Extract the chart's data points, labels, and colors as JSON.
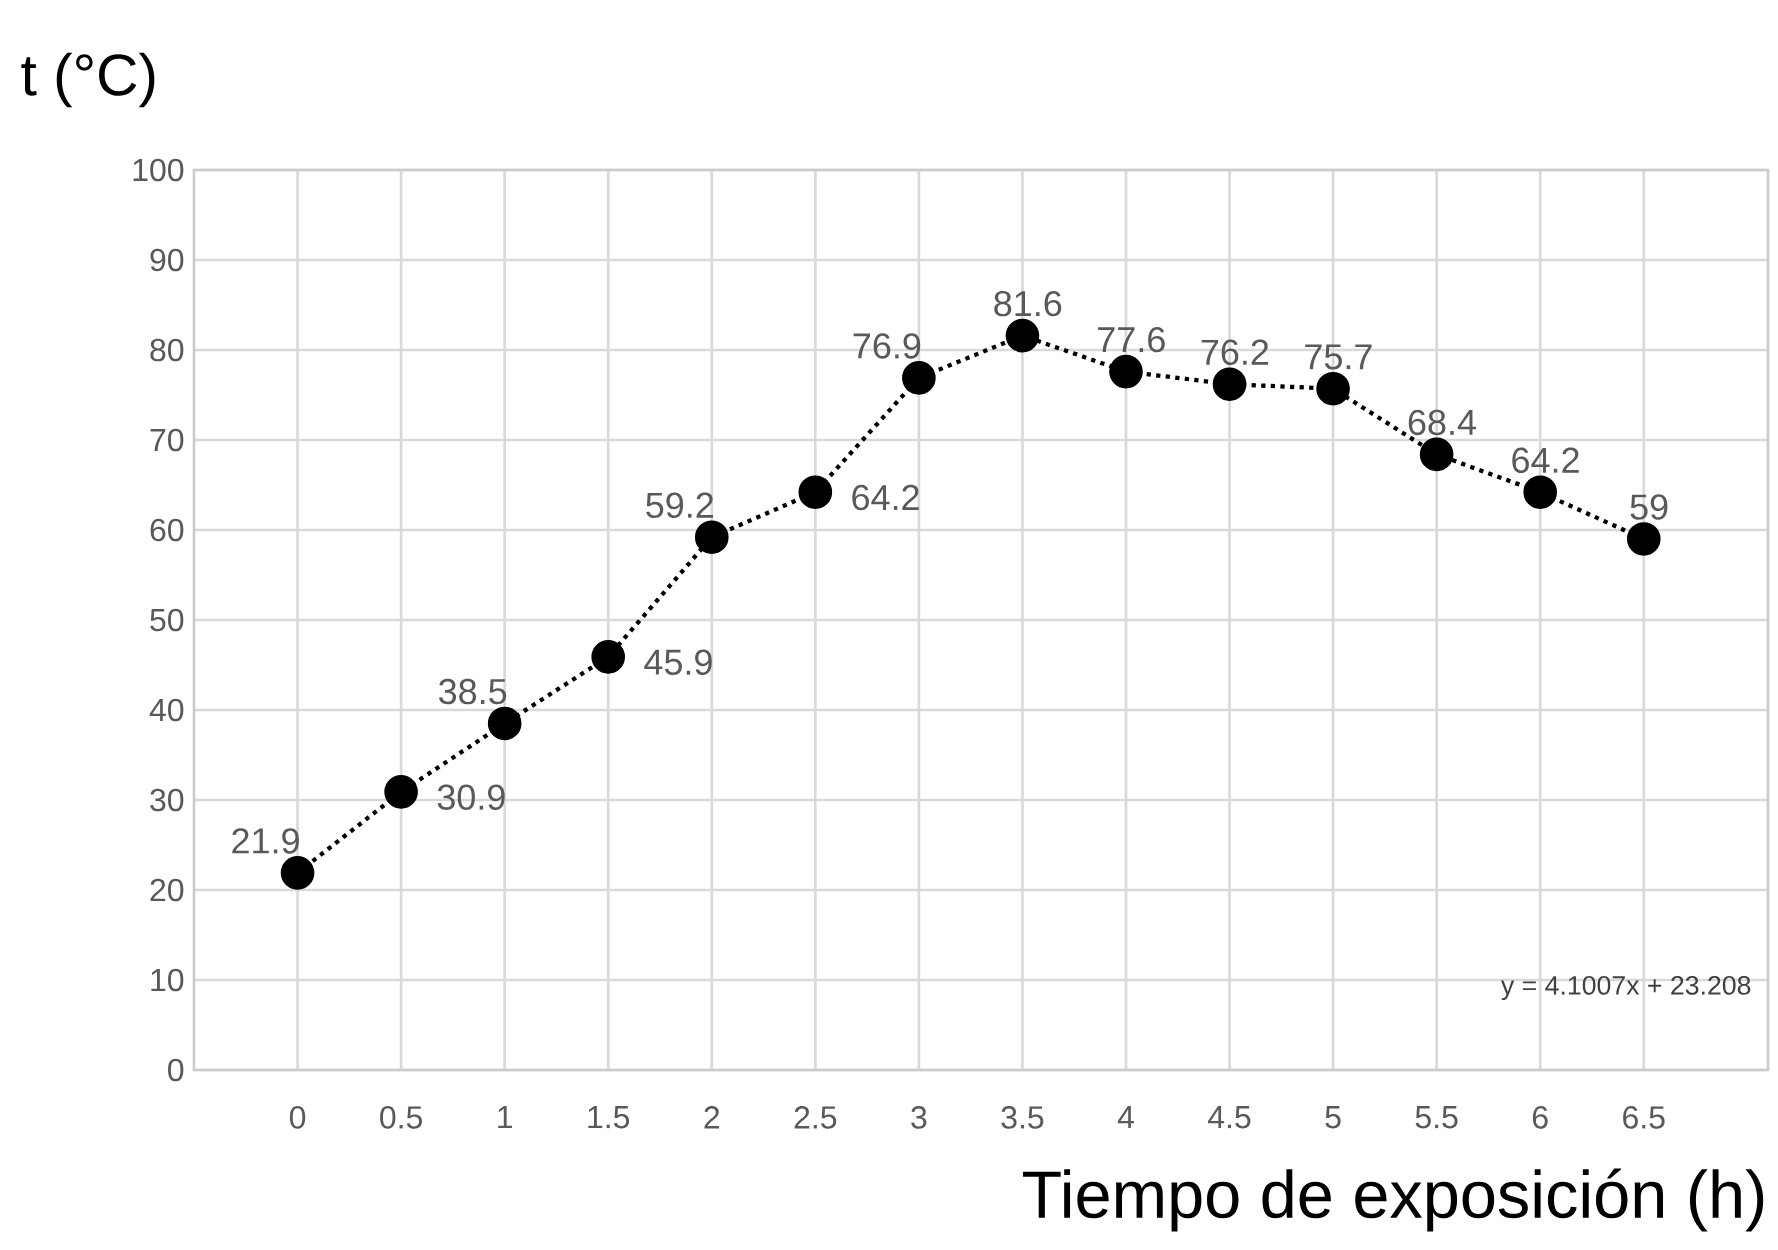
{
  "chart_data": {
    "type": "line",
    "title": "t (°C)",
    "xlabel": "Tiempo de exposición (h)",
    "x": [
      0,
      0.5,
      1,
      1.5,
      2,
      2.5,
      3,
      3.5,
      4,
      4.5,
      5,
      5.5,
      6,
      6.5
    ],
    "series": [
      {
        "color": "#000000",
        "values": [
          21.9,
          30.9,
          38.5,
          45.9,
          59.2,
          64.2,
          76.9,
          81.6,
          77.6,
          76.2,
          75.7,
          68.4,
          64.2,
          59
        ]
      }
    ],
    "xlim": [
      -0.5,
      7.1
    ],
    "ylim": [
      0,
      100
    ],
    "xticks": [
      0,
      0.5,
      1,
      1.5,
      2,
      2.5,
      3,
      3.5,
      4,
      4.5,
      5,
      5.5,
      6,
      6.5
    ],
    "yticks": [
      0,
      10,
      20,
      30,
      40,
      50,
      60,
      70,
      80,
      90,
      100
    ],
    "grid": true,
    "marker": "circle",
    "line_style": "dotted",
    "data_labels": true,
    "annotations": [
      "y = 4.1007x + 23.208"
    ]
  }
}
